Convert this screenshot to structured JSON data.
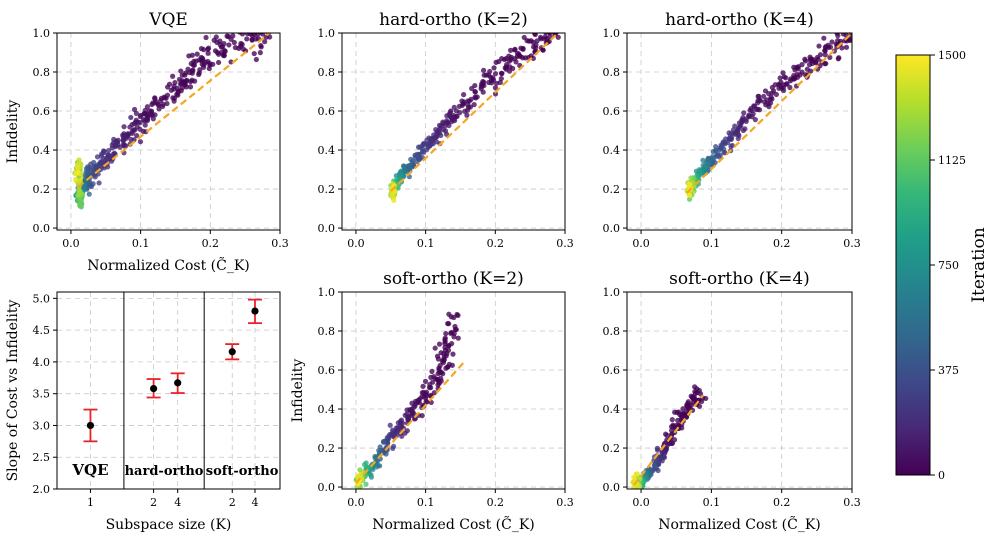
{
  "chart_data": [
    {
      "id": "vqe",
      "type": "scatter",
      "title": "VQE",
      "xlabel": "Normalized Cost (C̃_K)",
      "ylabel": "Infidelity",
      "xlim": [
        -0.02,
        0.3
      ],
      "ylim": [
        -0.01,
        1.0
      ],
      "xticks": [
        0.0,
        0.1,
        0.2,
        0.3
      ],
      "yticks": [
        0.0,
        0.2,
        0.4,
        0.6,
        0.8,
        1.0
      ],
      "grid": true,
      "fit_line": {
        "x": [
          0.01,
          0.285
        ],
        "y": [
          0.21,
          1.0
        ]
      },
      "trajectory": [
        {
          "x": 0.285,
          "y": 1.0
        },
        {
          "x": 0.26,
          "y": 0.97
        },
        {
          "x": 0.22,
          "y": 0.93
        },
        {
          "x": 0.19,
          "y": 0.86
        },
        {
          "x": 0.17,
          "y": 0.78
        },
        {
          "x": 0.15,
          "y": 0.72
        },
        {
          "x": 0.12,
          "y": 0.62
        },
        {
          "x": 0.1,
          "y": 0.55
        },
        {
          "x": 0.08,
          "y": 0.47
        },
        {
          "x": 0.06,
          "y": 0.4
        },
        {
          "x": 0.045,
          "y": 0.33
        },
        {
          "x": 0.03,
          "y": 0.28
        },
        {
          "x": 0.02,
          "y": 0.24
        },
        {
          "x": 0.015,
          "y": 0.2
        },
        {
          "x": 0.012,
          "y": 0.16
        },
        {
          "x": 0.013,
          "y": 0.13
        },
        {
          "x": 0.011,
          "y": 0.3
        }
      ],
      "spread": 0.045
    },
    {
      "id": "hard2",
      "type": "scatter",
      "title": "hard-ortho (K=2)",
      "xlabel": "",
      "ylabel": "",
      "xlim": [
        -0.02,
        0.3
      ],
      "ylim": [
        -0.01,
        1.0
      ],
      "xticks": [
        0.0,
        0.1,
        0.2,
        0.3
      ],
      "yticks": [
        0.0,
        0.2,
        0.4,
        0.6,
        0.8,
        1.0
      ],
      "grid": true,
      "fit_line": {
        "x": [
          0.05,
          0.29
        ],
        "y": [
          0.19,
          1.0
        ]
      },
      "trajectory": [
        {
          "x": 0.29,
          "y": 1.0
        },
        {
          "x": 0.26,
          "y": 0.95
        },
        {
          "x": 0.23,
          "y": 0.88
        },
        {
          "x": 0.2,
          "y": 0.8
        },
        {
          "x": 0.17,
          "y": 0.68
        },
        {
          "x": 0.14,
          "y": 0.58
        },
        {
          "x": 0.12,
          "y": 0.48
        },
        {
          "x": 0.1,
          "y": 0.42
        },
        {
          "x": 0.08,
          "y": 0.33
        },
        {
          "x": 0.065,
          "y": 0.27
        },
        {
          "x": 0.057,
          "y": 0.22
        },
        {
          "x": 0.052,
          "y": 0.18
        }
      ],
      "spread": 0.035
    },
    {
      "id": "hard4",
      "type": "scatter",
      "title": "hard-ortho (K=4)",
      "xlabel": "",
      "ylabel": "",
      "xlim": [
        -0.02,
        0.3
      ],
      "ylim": [
        -0.01,
        1.0
      ],
      "xticks": [
        0.0,
        0.1,
        0.2,
        0.3
      ],
      "yticks": [
        0.0,
        0.2,
        0.4,
        0.6,
        0.8,
        1.0
      ],
      "grid": true,
      "fit_line": {
        "x": [
          0.065,
          0.3
        ],
        "y": [
          0.18,
          1.0
        ]
      },
      "trajectory": [
        {
          "x": 0.3,
          "y": 0.98
        },
        {
          "x": 0.27,
          "y": 0.92
        },
        {
          "x": 0.24,
          "y": 0.84
        },
        {
          "x": 0.21,
          "y": 0.76
        },
        {
          "x": 0.18,
          "y": 0.66
        },
        {
          "x": 0.15,
          "y": 0.56
        },
        {
          "x": 0.13,
          "y": 0.47
        },
        {
          "x": 0.11,
          "y": 0.39
        },
        {
          "x": 0.09,
          "y": 0.31
        },
        {
          "x": 0.078,
          "y": 0.25
        },
        {
          "x": 0.07,
          "y": 0.2
        }
      ],
      "spread": 0.035
    },
    {
      "id": "slope",
      "type": "errorbar",
      "title": "",
      "xlabel": "Subspace size (K)",
      "ylabel": "Slope of Cost vs Infidelity",
      "ylim": [
        2.0,
        5.1
      ],
      "yticks": [
        2.0,
        2.5,
        3.0,
        3.5,
        4.0,
        4.5,
        5.0
      ],
      "grid": true,
      "regions": [
        "VQE",
        "hard-ortho",
        "soft-ortho"
      ],
      "points": [
        {
          "region": 0,
          "k": "1",
          "y": 3.0,
          "err_low": 2.75,
          "err_high": 3.25
        },
        {
          "region": 1,
          "k": "2",
          "y": 3.58,
          "err_low": 3.44,
          "err_high": 3.73
        },
        {
          "region": 1,
          "k": "4",
          "y": 3.67,
          "err_low": 3.51,
          "err_high": 3.82
        },
        {
          "region": 2,
          "k": "2",
          "y": 4.16,
          "err_low": 4.04,
          "err_high": 4.28
        },
        {
          "region": 2,
          "k": "4",
          "y": 4.8,
          "err_low": 4.61,
          "err_high": 4.98
        }
      ]
    },
    {
      "id": "soft2",
      "type": "scatter",
      "title": "soft-ortho (K=2)",
      "xlabel": "Normalized Cost (C̃_K)",
      "ylabel": "Infidelity",
      "xlim": [
        -0.02,
        0.3
      ],
      "ylim": [
        -0.01,
        1.0
      ],
      "xticks": [
        0.0,
        0.1,
        0.2,
        0.3
      ],
      "yticks": [
        0.0,
        0.2,
        0.4,
        0.6,
        0.8,
        1.0
      ],
      "grid": true,
      "fit_line": {
        "x": [
          0.0,
          0.155
        ],
        "y": [
          0.02,
          0.64
        ]
      },
      "trajectory": [
        {
          "x": 0.145,
          "y": 0.86
        },
        {
          "x": 0.13,
          "y": 0.7
        },
        {
          "x": 0.12,
          "y": 0.58
        },
        {
          "x": 0.1,
          "y": 0.46
        },
        {
          "x": 0.08,
          "y": 0.38
        },
        {
          "x": 0.06,
          "y": 0.3
        },
        {
          "x": 0.045,
          "y": 0.22
        },
        {
          "x": 0.03,
          "y": 0.14
        },
        {
          "x": 0.015,
          "y": 0.07
        },
        {
          "x": 0.004,
          "y": 0.03
        }
      ],
      "spread": 0.04
    },
    {
      "id": "soft4",
      "type": "scatter",
      "title": "soft-ortho (K=4)",
      "xlabel": "Normalized Cost (C̃_K)",
      "ylabel": "",
      "xlim": [
        -0.02,
        0.3
      ],
      "ylim": [
        -0.01,
        1.0
      ],
      "xticks": [
        0.0,
        0.1,
        0.2,
        0.3
      ],
      "yticks": [
        0.0,
        0.2,
        0.4,
        0.6,
        0.8,
        1.0
      ],
      "grid": true,
      "fit_line": {
        "x": [
          -0.01,
          0.088
        ],
        "y": [
          0.01,
          0.47
        ]
      },
      "trajectory": [
        {
          "x": 0.085,
          "y": 0.48
        },
        {
          "x": 0.07,
          "y": 0.42
        },
        {
          "x": 0.055,
          "y": 0.34
        },
        {
          "x": 0.04,
          "y": 0.25
        },
        {
          "x": 0.03,
          "y": 0.17
        },
        {
          "x": 0.015,
          "y": 0.09
        },
        {
          "x": 0.003,
          "y": 0.04
        },
        {
          "x": -0.008,
          "y": 0.025
        }
      ],
      "spread": 0.03
    }
  ],
  "colorbar": {
    "label": "Iteration",
    "min": 0,
    "max": 1500,
    "ticks": [
      "0",
      "375",
      "750",
      "1125",
      "1500"
    ],
    "colormap": [
      "#440154",
      "#482878",
      "#3e4989",
      "#31688e",
      "#26828e",
      "#1f9e89",
      "#35b779",
      "#6ece58",
      "#b5de2b",
      "#fde725"
    ]
  }
}
